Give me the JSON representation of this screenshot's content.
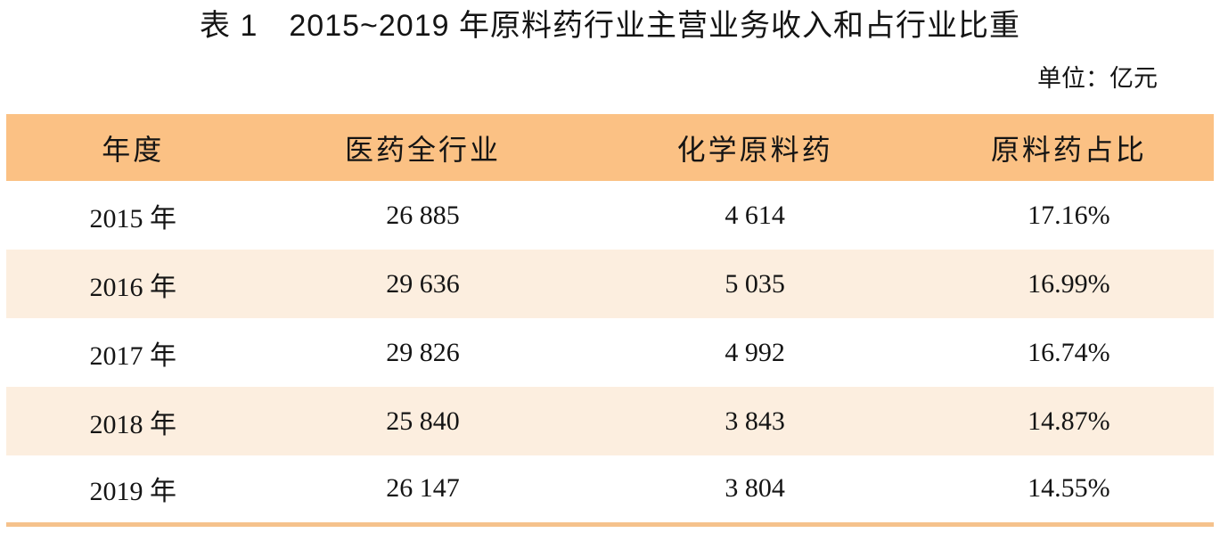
{
  "title": "表 1　2015~2019 年原料药行业主营业务收入和占行业比重",
  "unit_note": "单位：亿元",
  "table": {
    "columns": [
      "年度",
      "医药全行业",
      "化学原料药",
      "原料药占比"
    ],
    "rows": [
      {
        "year": "2015 年",
        "industry_total": "26 885",
        "chemical_api": "4 614",
        "api_share": "17.16%"
      },
      {
        "year": "2016 年",
        "industry_total": "29 636",
        "chemical_api": "5 035",
        "api_share": "16.99%"
      },
      {
        "year": "2017 年",
        "industry_total": "29 826",
        "chemical_api": "4 992",
        "api_share": "16.74%"
      },
      {
        "year": "2018 年",
        "industry_total": "25 840",
        "chemical_api": "3 843",
        "api_share": "14.87%"
      },
      {
        "year": "2019 年",
        "industry_total": "26 147",
        "chemical_api": "3 804",
        "api_share": "14.55%"
      }
    ]
  },
  "colors": {
    "header_bg": "#FBC184",
    "row_alt_bg": "#FCEEDF",
    "bottom_rule": "#F5C28C",
    "text": "#141414"
  },
  "chart_data": {
    "type": "table",
    "title": "表 1 2015~2019 年原料药行业主营业务收入和占行业比重",
    "unit": "亿元",
    "columns": [
      "年度",
      "医药全行业",
      "化学原料药",
      "原料药占比"
    ],
    "years": [
      2015,
      2016,
      2017,
      2018,
      2019
    ],
    "series": [
      {
        "name": "医药全行业",
        "values": [
          26885,
          29636,
          29826,
          25840,
          26147
        ]
      },
      {
        "name": "化学原料药",
        "values": [
          4614,
          5035,
          4992,
          3843,
          3804
        ]
      },
      {
        "name": "原料药占比(%)",
        "values": [
          17.16,
          16.99,
          16.74,
          14.87,
          14.55
        ]
      }
    ]
  }
}
